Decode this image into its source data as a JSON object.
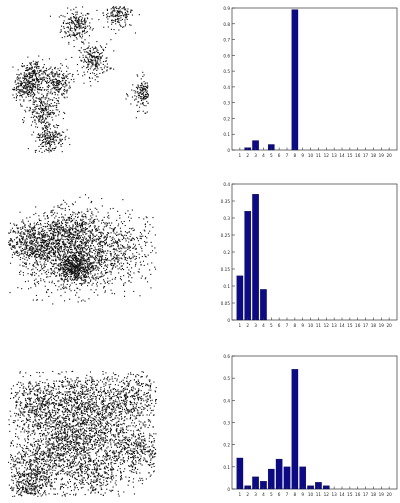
{
  "chart_data": [
    {
      "type": "scatter",
      "title": "",
      "clusters": [
        {
          "cx": 0.47,
          "cy": 0.87,
          "r": 0.055,
          "n": 220
        },
        {
          "cx": 0.78,
          "cy": 0.96,
          "r": 0.055,
          "n": 220
        },
        {
          "cx": 0.16,
          "cy": 0.53,
          "r": 0.055,
          "n": 220
        },
        {
          "cx": 0.32,
          "cy": 0.48,
          "r": 0.055,
          "n": 220
        },
        {
          "cx": 0.6,
          "cy": 0.63,
          "r": 0.055,
          "n": 220
        },
        {
          "cx": 0.98,
          "cy": 0.4,
          "r": 0.055,
          "n": 220
        },
        {
          "cx": 0.22,
          "cy": 0.29,
          "r": 0.055,
          "n": 220
        },
        {
          "cx": 0.09,
          "cy": 0.45,
          "r": 0.055,
          "n": 220
        },
        {
          "cx": 0.27,
          "cy": 0.1,
          "r": 0.055,
          "n": 220
        }
      ]
    },
    {
      "type": "bar",
      "title": "",
      "categories": [
        "1",
        "2",
        "3",
        "4",
        "5",
        "6",
        "7",
        "8",
        "9",
        "10",
        "11",
        "12",
        "13",
        "14",
        "15",
        "16",
        "17",
        "18",
        "19",
        "20"
      ],
      "values": [
        0,
        0.015,
        0.06,
        0,
        0.035,
        0,
        0,
        0.89,
        0,
        0,
        0,
        0,
        0,
        0,
        0,
        0,
        0,
        0,
        0,
        0
      ],
      "ylim": [
        0,
        0.9
      ],
      "yticks": [
        "0",
        "0.1",
        "0.2",
        "0.3",
        "0.4",
        "0.5",
        "0.6",
        "0.7",
        "0.8",
        "0.9"
      ],
      "ytick_values": [
        0,
        0.1,
        0.2,
        0.3,
        0.4,
        0.5,
        0.6,
        0.7,
        0.8,
        0.9
      ],
      "color": "#0a0a8a"
    },
    {
      "type": "scatter",
      "title": "",
      "clusters": [
        {
          "cx": 0.15,
          "cy": 0.55,
          "r": 0.09,
          "n": 500
        },
        {
          "cx": 0.42,
          "cy": 0.45,
          "r": 0.17,
          "n": 1100
        },
        {
          "cx": 0.45,
          "cy": 0.33,
          "r": 0.06,
          "n": 450
        },
        {
          "cx": 0.72,
          "cy": 0.5,
          "r": 0.16,
          "n": 500
        },
        {
          "cx": 0.4,
          "cy": 0.65,
          "r": 0.1,
          "n": 400
        }
      ]
    },
    {
      "type": "bar",
      "title": "",
      "categories": [
        "1",
        "2",
        "3",
        "4",
        "5",
        "6",
        "7",
        "8",
        "9",
        "10",
        "11",
        "12",
        "13",
        "14",
        "15",
        "16",
        "17",
        "18",
        "19",
        "20"
      ],
      "values": [
        0.13,
        0.32,
        0.37,
        0.09,
        0,
        0,
        0,
        0,
        0,
        0,
        0,
        0,
        0,
        0,
        0,
        0,
        0,
        0,
        0,
        0
      ],
      "ylim": [
        0,
        0.4
      ],
      "yticks": [
        "0",
        "0.05",
        "0.1",
        "0.15",
        "0.2",
        "0.25",
        "0.3",
        "0.35",
        "0.4"
      ],
      "ytick_values": [
        0,
        0.05,
        0.1,
        0.15,
        0.2,
        0.25,
        0.3,
        0.35,
        0.4
      ],
      "color": "#0a0a8a"
    },
    {
      "type": "scatter",
      "title": "",
      "clusters": [
        {
          "cx": 0.2,
          "cy": 0.72,
          "r": 0.11,
          "n": 550
        },
        {
          "cx": 0.48,
          "cy": 0.78,
          "r": 0.12,
          "n": 550
        },
        {
          "cx": 0.82,
          "cy": 0.78,
          "r": 0.1,
          "n": 450
        },
        {
          "cx": 0.58,
          "cy": 0.57,
          "r": 0.11,
          "n": 450
        },
        {
          "cx": 0.38,
          "cy": 0.45,
          "r": 0.1,
          "n": 450
        },
        {
          "cx": 0.18,
          "cy": 0.28,
          "r": 0.11,
          "n": 500
        },
        {
          "cx": 0.55,
          "cy": 0.2,
          "r": 0.13,
          "n": 600
        },
        {
          "cx": 0.85,
          "cy": 0.37,
          "r": 0.1,
          "n": 450
        },
        {
          "cx": 0.15,
          "cy": 0.08,
          "r": 0.07,
          "n": 300
        }
      ]
    },
    {
      "type": "bar",
      "title": "",
      "categories": [
        "1",
        "2",
        "3",
        "4",
        "5",
        "6",
        "7",
        "8",
        "9",
        "10",
        "11",
        "12",
        "13",
        "14",
        "15",
        "16",
        "17",
        "18",
        "19",
        "20"
      ],
      "values": [
        0.14,
        0.015,
        0.055,
        0.035,
        0.09,
        0.135,
        0.1,
        0.54,
        0.1,
        0.015,
        0.03,
        0.015,
        0,
        0,
        0,
        0,
        0,
        0,
        0,
        0
      ],
      "ylim": [
        0,
        0.6
      ],
      "yticks": [
        "0",
        "0.1",
        "0.2",
        "0.3",
        "0.4",
        "0.5",
        "0.6"
      ],
      "ytick_values": [
        0,
        0.1,
        0.2,
        0.3,
        0.4,
        0.5,
        0.6
      ],
      "color": "#0a0a8a"
    }
  ]
}
